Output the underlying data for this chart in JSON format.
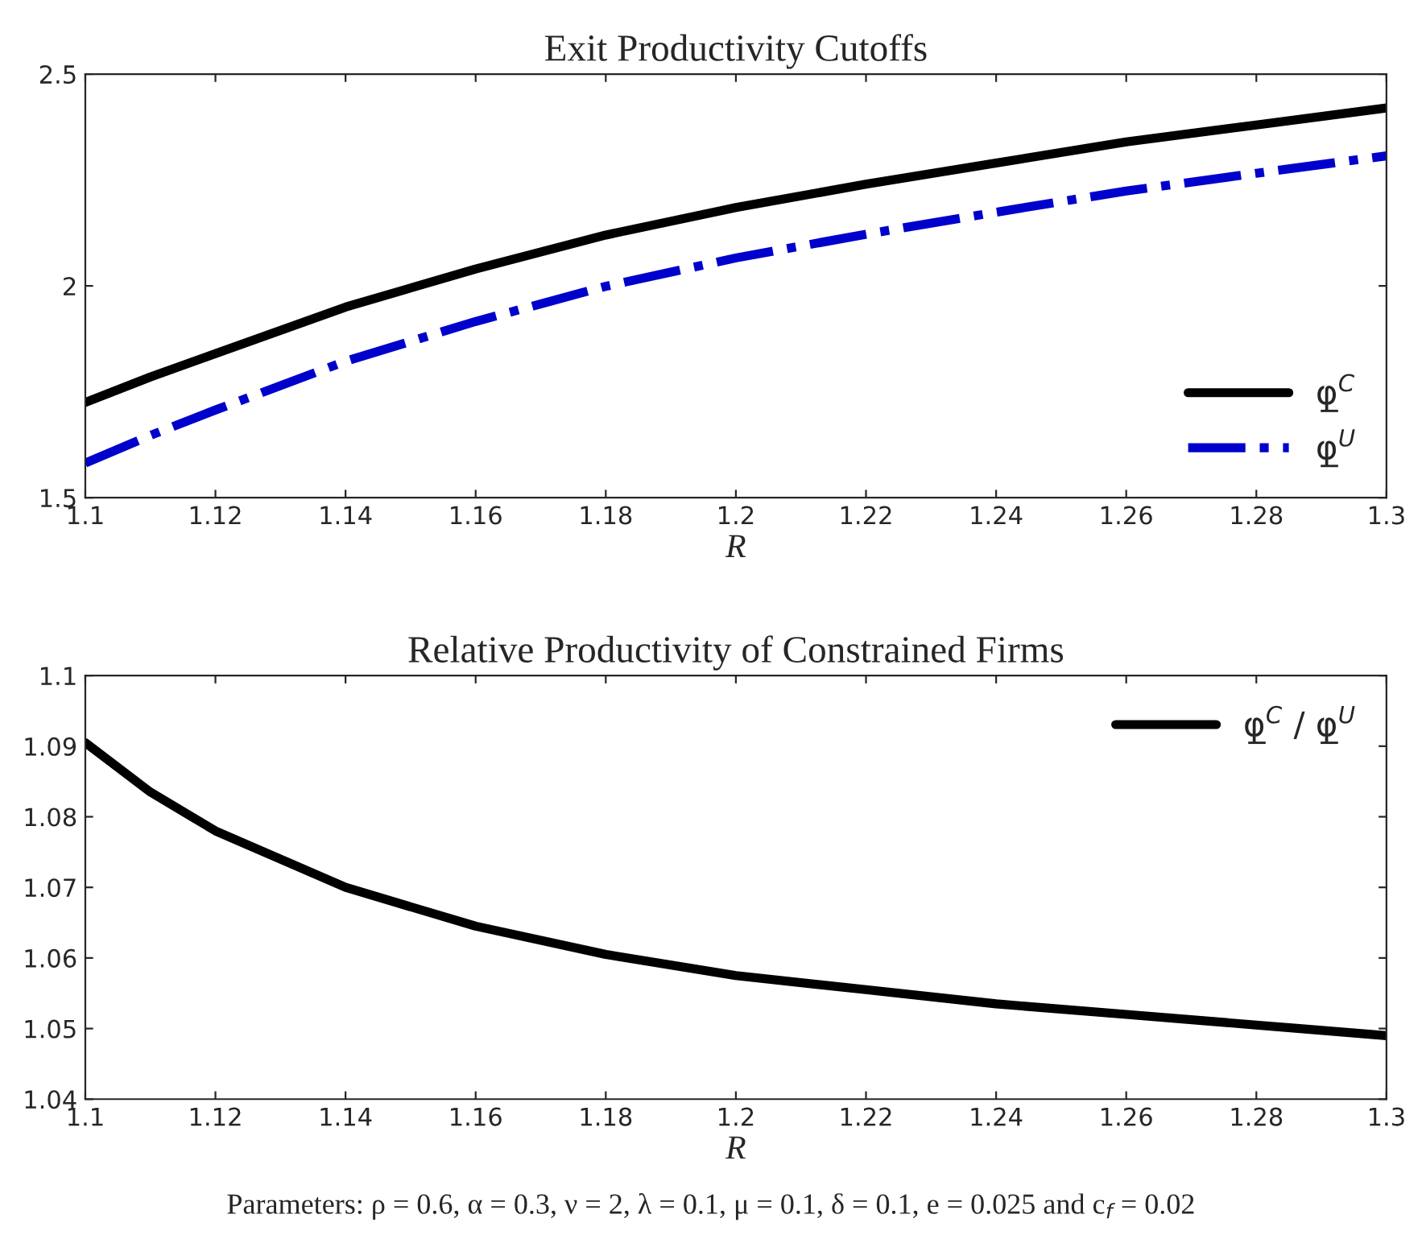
{
  "chart_data": [
    {
      "type": "line",
      "title": "Exit Productivity Cutoffs",
      "xlabel": "R",
      "x": [
        1.1,
        1.11,
        1.12,
        1.14,
        1.16,
        1.18,
        1.2,
        1.22,
        1.24,
        1.26,
        1.28,
        1.3
      ],
      "series": [
        {
          "name": "φ̲$^{C}$",
          "color": "#000000",
          "line_style": "solid",
          "values": [
            1.725,
            1.785,
            1.84,
            1.95,
            2.04,
            2.12,
            2.185,
            2.24,
            2.29,
            2.34,
            2.38,
            2.42
          ]
        },
        {
          "name": "φ̲$^{U}$",
          "color": "#0000cc",
          "line_style": "dashdot",
          "values": [
            1.582,
            1.647,
            1.707,
            1.822,
            1.916,
            1.999,
            2.066,
            2.122,
            2.174,
            2.224,
            2.266,
            2.307
          ]
        }
      ],
      "xlim": [
        1.1,
        1.3
      ],
      "xticks": [
        1.1,
        1.12,
        1.14,
        1.16,
        1.18,
        1.2,
        1.22,
        1.24,
        1.26,
        1.28,
        1.3
      ],
      "ylim": [
        1.5,
        2.5
      ],
      "yticks": [
        1.5,
        2,
        2.5
      ],
      "grid": false,
      "legend": "lower right"
    },
    {
      "type": "line",
      "title": "Relative Productivity of Constrained Firms",
      "xlabel": "R",
      "x": [
        1.1,
        1.11,
        1.12,
        1.14,
        1.16,
        1.18,
        1.2,
        1.22,
        1.24,
        1.26,
        1.28,
        1.3
      ],
      "series": [
        {
          "name": "φ̲$^{C}$ / φ̲$^{U}$",
          "color": "#000000",
          "line_style": "solid",
          "values": [
            1.0905,
            1.0835,
            1.078,
            1.07,
            1.0645,
            1.0605,
            1.0575,
            1.0555,
            1.0535,
            1.052,
            1.0505,
            1.049
          ]
        }
      ],
      "xlim": [
        1.1,
        1.3
      ],
      "xticks": [
        1.1,
        1.12,
        1.14,
        1.16,
        1.18,
        1.2,
        1.22,
        1.24,
        1.26,
        1.28,
        1.3
      ],
      "ylim": [
        1.04,
        1.1
      ],
      "yticks": [
        1.04,
        1.05,
        1.06,
        1.07,
        1.08,
        1.09,
        1.1
      ],
      "grid": false,
      "legend": "top right",
      "annotations": [
        "Parameters: ρ = 0.6, α = 0.3, ν = 2, λ = 0.1, μ = 0.1, δ = 0.1, e = 0.025 and c$_{f}$ = 0.02"
      ]
    }
  ]
}
